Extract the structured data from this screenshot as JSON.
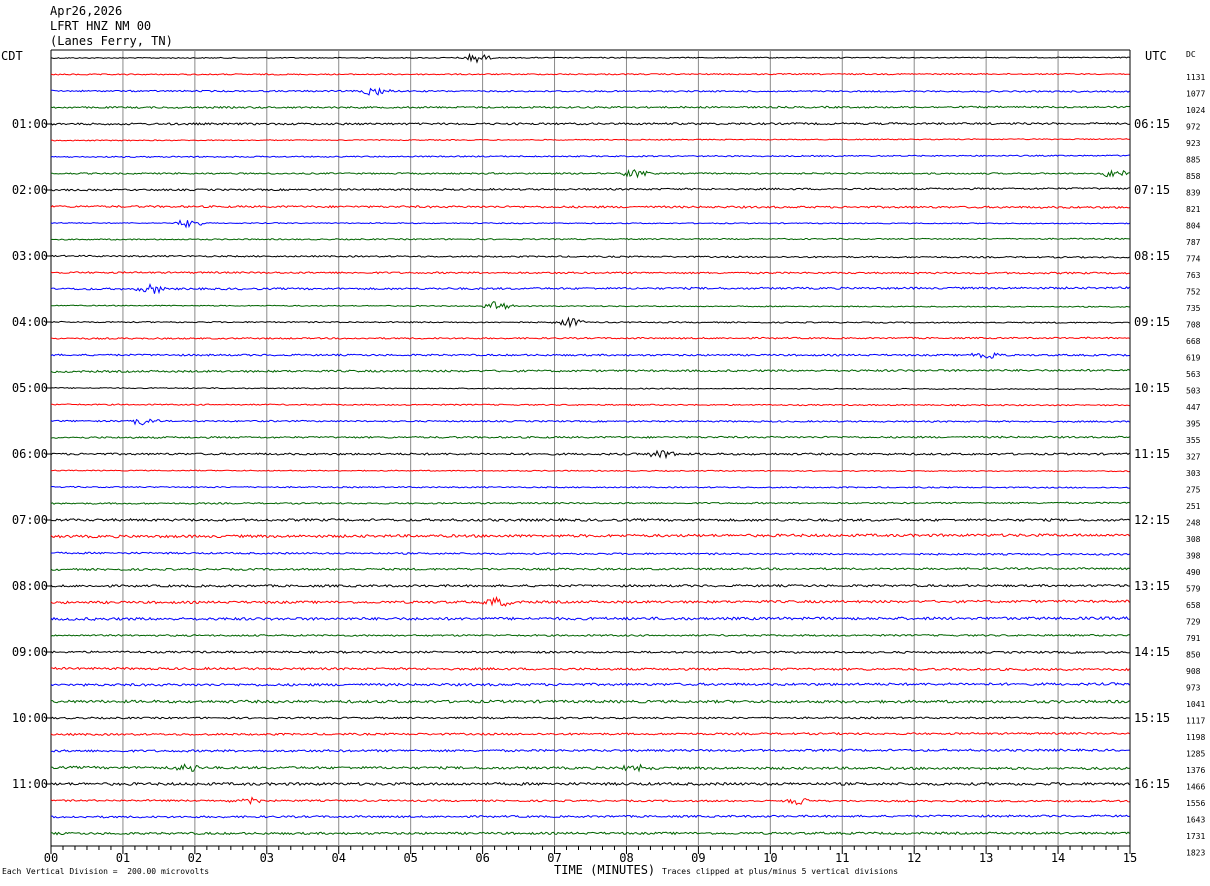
{
  "header": {
    "date": "Apr26,2026",
    "station": "LFRT HNZ NM 00",
    "location": "(Lanes Ferry, TN)"
  },
  "timezones": {
    "left": "CDT",
    "right": "UTC"
  },
  "dc_label": "DC",
  "footer": {
    "left": "Each Vertical Division =  200.00 microvolts",
    "right": "Traces clipped at plus/minus 5 vertical divisions"
  },
  "chart_data": {
    "type": "line",
    "xlabel": "TIME (MINUTES)",
    "xlim": [
      0,
      15
    ],
    "x_ticks": [
      "00",
      "01",
      "02",
      "03",
      "04",
      "05",
      "06",
      "07",
      "08",
      "09",
      "10",
      "11",
      "12",
      "13",
      "14",
      "15"
    ],
    "trace_colors": [
      "#000000",
      "#ff0000",
      "#0000ff",
      "#006400"
    ],
    "left_hour_labels": [
      "01:00",
      "02:00",
      "03:00",
      "04:00",
      "05:00",
      "06:00",
      "07:00",
      "08:00",
      "09:00",
      "10:00",
      "11:00"
    ],
    "right_hour_labels": [
      "06:15",
      "07:15",
      "08:15",
      "09:15",
      "10:15",
      "11:15",
      "12:15",
      "13:15",
      "14:15",
      "15:15",
      "16:15"
    ],
    "dc_offsets": [
      "1131",
      "1077",
      "1024",
      "972",
      "923",
      "885",
      "858",
      "839",
      "821",
      "804",
      "787",
      "774",
      "763",
      "752",
      "735",
      "708",
      "668",
      "619",
      "563",
      "503",
      "447",
      "395",
      "355",
      "327",
      "303",
      "275",
      "251",
      "248",
      "308",
      "398",
      "490",
      "579",
      "658",
      "729",
      "791",
      "850",
      "908",
      "973",
      "1041",
      "1117",
      "1198",
      "1285",
      "1376",
      "1466",
      "1556",
      "1643",
      "1731",
      "1823"
    ],
    "notable_events": [
      {
        "trace": 0,
        "minute": 5.9
      },
      {
        "trace": 2,
        "minute": 4.5
      },
      {
        "trace": 7,
        "minute": 8.1
      },
      {
        "trace": 7,
        "minute": 14.8
      },
      {
        "trace": 10,
        "minute": 1.9
      },
      {
        "trace": 14,
        "minute": 1.4
      },
      {
        "trace": 15,
        "minute": 6.2
      },
      {
        "trace": 16,
        "minute": 7.2
      },
      {
        "trace": 18,
        "minute": 13.0
      },
      {
        "trace": 22,
        "minute": 1.3
      },
      {
        "trace": 24,
        "minute": 8.5
      },
      {
        "trace": 33,
        "minute": 6.2
      },
      {
        "trace": 43,
        "minute": 1.9
      },
      {
        "trace": 43,
        "minute": 8.1
      },
      {
        "trace": 45,
        "minute": 2.7
      },
      {
        "trace": 45,
        "minute": 10.4
      }
    ]
  }
}
